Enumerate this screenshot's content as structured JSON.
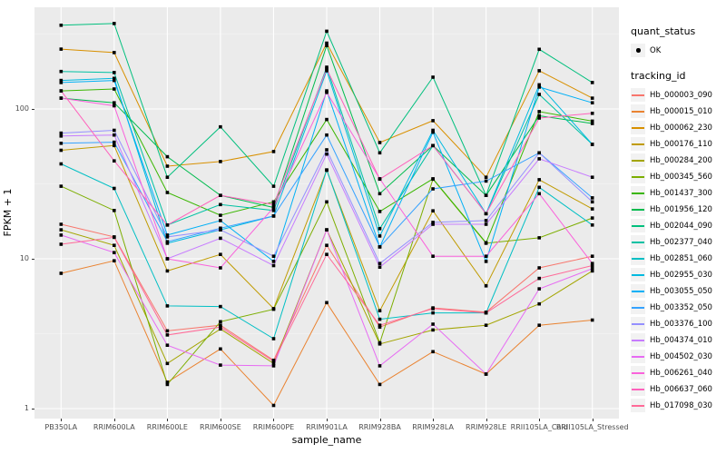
{
  "figure": {
    "background": "#FFFFFF",
    "panel_background": "#EBEBEB",
    "grid_color": "#FFFFFF",
    "tick_text_color": "#4D4D4D",
    "axis_title_color": "#000000",
    "legend_key_background": "#F2F2F2",
    "point_color": "#000000"
  },
  "axes": {
    "x_title": "sample_name",
    "y_title": "FPKM + 1",
    "y_tick_labels": [
      "1",
      "10",
      "100"
    ]
  },
  "legend": {
    "quant_status_title": "quant_status",
    "quant_status_items": [
      {
        "label": "OK"
      }
    ],
    "tracking_id_title": "tracking_id"
  },
  "chart_data": {
    "type": "line",
    "title": "",
    "xlabel": "sample_name",
    "ylabel": "FPKM + 1",
    "y_scale": "log10",
    "y_ticks": [
      1,
      10,
      100
    ],
    "y_minor_ticks": [
      3.162,
      31.62,
      316.2
    ],
    "ylim_approx": [
      0.86,
      475
    ],
    "grid": true,
    "legend_position": "right",
    "marker": "small-black-point",
    "categories": [
      "PB350LA",
      "RRIM600LA",
      "RRIM600LE",
      "RRIM600SE",
      "RRIM600PE",
      "RRIM901LA",
      "RRIM928BA",
      "RRIM928LA",
      "RRIM928LE",
      "RRII105LA_Cold",
      "RRII105LA_Stressed"
    ],
    "series": [
      {
        "name": "Hb_000003_090",
        "color": "#F8766D",
        "values": [
          17,
          14,
          3.3,
          3.6,
          2.1,
          12.3,
          3.5,
          4.7,
          4.4,
          8.7,
          10.4
        ]
      },
      {
        "name": "Hb_000015_010",
        "color": "#EA8331",
        "values": [
          8,
          9.7,
          1.5,
          2.5,
          1.05,
          5.1,
          1.45,
          2.4,
          1.7,
          3.6,
          3.9
        ]
      },
      {
        "name": "Hb_000062_230",
        "color": "#D89000",
        "values": [
          251,
          238,
          41.5,
          44.6,
          52,
          275,
          59.7,
          83.5,
          35,
          180,
          118
        ]
      },
      {
        "name": "Hb_000176_110",
        "color": "#C09B00",
        "values": [
          53,
          57,
          8.3,
          10.7,
          4.65,
          39,
          4.5,
          20.9,
          6.6,
          33.7,
          21.5
        ]
      },
      {
        "name": "Hb_000284_200",
        "color": "#A3A500",
        "values": [
          15.6,
          12.3,
          2.0,
          3.4,
          2.0,
          15.6,
          2.7,
          3.35,
          3.6,
          5.0,
          8.3
        ]
      },
      {
        "name": "Hb_000345_560",
        "color": "#7CAE00",
        "values": [
          30.5,
          21,
          1.45,
          3.8,
          4.6,
          24,
          2.75,
          34,
          12.7,
          13.8,
          18.7
        ]
      },
      {
        "name": "Hb_001437_300",
        "color": "#39B600",
        "values": [
          132,
          136,
          27.7,
          19.5,
          24,
          85,
          20.7,
          34.2,
          12.8,
          96,
          83
        ]
      },
      {
        "name": "Hb_001956_120",
        "color": "#00BB4E",
        "values": [
          118,
          110,
          48,
          26.5,
          22,
          265,
          27.2,
          57,
          26.5,
          90,
          80
        ]
      },
      {
        "name": "Hb_002044_090",
        "color": "#00BF7D",
        "values": [
          362,
          372,
          35,
          76,
          30.5,
          330,
          51,
          163,
          26.5,
          250,
          150
        ]
      },
      {
        "name": "Hb_002377_040",
        "color": "#00C1A3",
        "values": [
          178,
          175,
          16.8,
          23,
          21,
          190,
          15.9,
          57,
          20,
          125,
          58
        ]
      },
      {
        "name": "Hb_002851_060",
        "color": "#00BFC4",
        "values": [
          43,
          29.5,
          4.85,
          4.8,
          2.93,
          39.2,
          3.95,
          4.35,
          4.35,
          30,
          16.8
        ]
      },
      {
        "name": "Hb_002955_030",
        "color": "#00BAE0",
        "values": [
          155,
          160,
          12.7,
          15.6,
          19.3,
          180,
          14.2,
          72,
          20,
          145,
          58
        ]
      },
      {
        "name": "Hb_003055_050",
        "color": "#00B0F6",
        "values": [
          150,
          155,
          14.4,
          18,
          9.6,
          132,
          12,
          70,
          9.6,
          140,
          110
        ]
      },
      {
        "name": "Hb_003352_050",
        "color": "#35A2FF",
        "values": [
          59,
          60,
          13,
          16,
          19.3,
          67,
          12,
          29.3,
          33,
          51,
          25.5
        ]
      },
      {
        "name": "Hb_003376_100",
        "color": "#9590FF",
        "values": [
          69,
          72,
          14,
          15.6,
          10.4,
          53.4,
          9.3,
          17.5,
          18,
          51,
          24
        ]
      },
      {
        "name": "Hb_004374_010",
        "color": "#C77CFF",
        "values": [
          66,
          67,
          10,
          13.7,
          9.0,
          50,
          8.8,
          17,
          17,
          46.5,
          35
        ]
      },
      {
        "name": "Hb_004502_030",
        "color": "#E76BF3",
        "values": [
          14.4,
          11,
          2.65,
          1.95,
          1.93,
          15.6,
          1.93,
          3.66,
          1.7,
          6.3,
          8.6
        ]
      },
      {
        "name": "Hb_006261_040",
        "color": "#FA62DB",
        "values": [
          118,
          105,
          10,
          8.7,
          22,
          129,
          34.2,
          10.4,
          10.4,
          27.2,
          9.3
        ]
      },
      {
        "name": "Hb_006637_060",
        "color": "#FF62BC",
        "values": [
          132,
          45,
          16.8,
          26.5,
          23,
          185,
          34,
          57,
          20,
          87,
          93.5
        ]
      },
      {
        "name": "Hb_017098_030",
        "color": "#FF6A98",
        "values": [
          12.5,
          13.9,
          3.1,
          3.5,
          2.07,
          10.7,
          3.6,
          4.65,
          4.35,
          7.4,
          9.0
        ]
      }
    ]
  }
}
